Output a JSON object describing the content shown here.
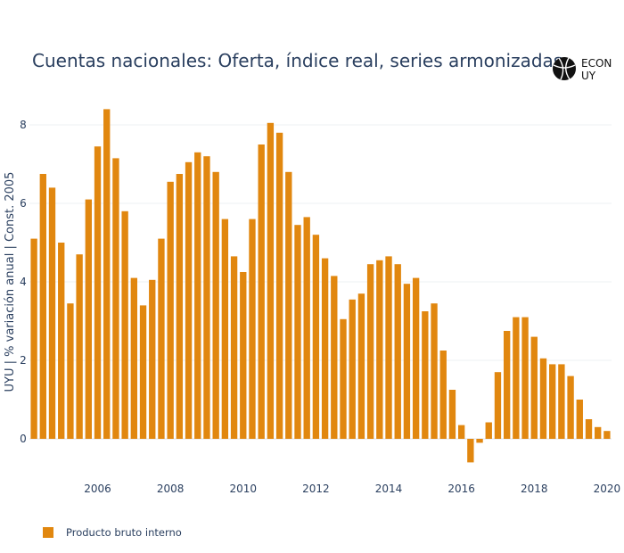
{
  "title": "Cuentas nacionales: Oferta, índice real, series armonizadas",
  "logo": {
    "text_line1": "ECON",
    "text_line2": "UY",
    "icon": "basketball-icon"
  },
  "colors": {
    "bar": "#e1870f",
    "grid": "#eef0f3",
    "axis_text": "#2a3f5f",
    "background": "#ffffff"
  },
  "chart_data": {
    "type": "bar",
    "title": "Cuentas nacionales: Oferta, índice real, series armonizadas",
    "ylabel": "UYU | % variación anual | Const. 2005",
    "xlabel": "",
    "ylim": [
      -0.9,
      9.0
    ],
    "yticks": [
      0,
      2,
      4,
      6,
      8
    ],
    "xticks": [
      "2006",
      "2008",
      "2010",
      "2012",
      "2014",
      "2016",
      "2018",
      "2020"
    ],
    "grid": true,
    "legend_position": "bottom-left",
    "series": [
      {
        "name": "Producto bruto interno",
        "color": "#e1870f",
        "x": [
          "2004-Q2",
          "2004-Q3",
          "2004-Q4",
          "2005-Q1",
          "2005-Q2",
          "2005-Q3",
          "2005-Q4",
          "2006-Q1",
          "2006-Q2",
          "2006-Q3",
          "2006-Q4",
          "2007-Q1",
          "2007-Q2",
          "2007-Q3",
          "2007-Q4",
          "2008-Q1",
          "2008-Q2",
          "2008-Q3",
          "2008-Q4",
          "2009-Q1",
          "2009-Q2",
          "2009-Q3",
          "2009-Q4",
          "2010-Q1",
          "2010-Q2",
          "2010-Q3",
          "2010-Q4",
          "2011-Q1",
          "2011-Q2",
          "2011-Q3",
          "2011-Q4",
          "2012-Q1",
          "2012-Q2",
          "2012-Q3",
          "2012-Q4",
          "2013-Q1",
          "2013-Q2",
          "2013-Q3",
          "2013-Q4",
          "2014-Q1",
          "2014-Q2",
          "2014-Q3",
          "2014-Q4",
          "2015-Q1",
          "2015-Q2",
          "2015-Q3",
          "2015-Q4",
          "2016-Q1",
          "2016-Q2",
          "2016-Q3",
          "2016-Q4",
          "2017-Q1",
          "2017-Q2",
          "2017-Q3",
          "2017-Q4",
          "2018-Q1",
          "2018-Q2",
          "2018-Q3",
          "2018-Q4",
          "2019-Q1",
          "2019-Q2",
          "2019-Q3",
          "2019-Q4",
          "2020-Q1"
        ],
        "values": [
          5.1,
          6.75,
          6.4,
          5.0,
          3.45,
          4.7,
          6.1,
          7.45,
          8.4,
          7.15,
          5.8,
          4.1,
          3.4,
          4.05,
          5.1,
          6.55,
          6.75,
          7.05,
          7.3,
          7.2,
          6.8,
          5.6,
          4.65,
          4.25,
          5.6,
          7.5,
          8.05,
          7.8,
          6.8,
          5.45,
          5.65,
          5.2,
          4.6,
          4.15,
          3.05,
          3.55,
          3.7,
          4.45,
          4.55,
          4.65,
          4.45,
          3.95,
          4.1,
          3.25,
          3.45,
          2.25,
          1.25,
          0.35,
          -0.6,
          -0.1,
          0.42,
          1.7,
          2.75,
          3.1,
          3.1,
          2.6,
          2.05,
          1.9,
          1.9,
          1.6,
          1.0,
          0.5,
          0.3,
          0.2
        ]
      }
    ]
  }
}
